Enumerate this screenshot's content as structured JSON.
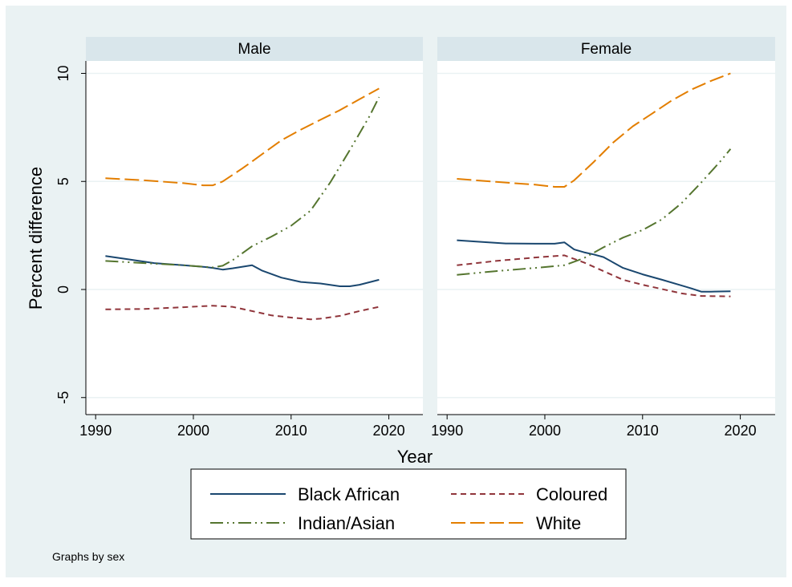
{
  "chart_data": {
    "type": "line",
    "xlabel": "Year",
    "ylabel": "Percent difference",
    "xlim": [
      1989,
      2023
    ],
    "ylim": [
      -5.8,
      10.5
    ],
    "xticks": [
      1990,
      2000,
      2010,
      2020
    ],
    "yticks": [
      -5,
      0,
      5,
      10
    ],
    "grid": true,
    "legend_position": "bottom",
    "note": "Graphs by sex",
    "colors": {
      "background": "#eaf2f3",
      "plot": "#ffffff",
      "strip": "#d9e6eb",
      "grid": "#eaf2f3",
      "black_african": "#1a476f",
      "coloured": "#90353b",
      "indian_asian": "#55752f",
      "white": "#e37e00"
    },
    "panels": [
      {
        "title": "Male",
        "series": [
          {
            "key": "black_african",
            "name": "Black African",
            "x": [
              1991,
              1993,
              1996,
              1999,
              2001,
              2002,
              2003,
              2004,
              2006,
              2007,
              2009,
              2011,
              2013,
              2015,
              2016,
              2017,
              2019
            ],
            "y": [
              1.55,
              1.42,
              1.22,
              1.12,
              1.05,
              1.0,
              0.92,
              0.98,
              1.12,
              0.88,
              0.55,
              0.35,
              0.28,
              0.15,
              0.15,
              0.22,
              0.45
            ]
          },
          {
            "key": "coloured",
            "name": "Coloured",
            "x": [
              1991,
              1995,
              1999,
              2002,
              2004,
              2006,
              2008,
              2010,
              2012,
              2013,
              2015,
              2017,
              2019
            ],
            "y": [
              -0.92,
              -0.9,
              -0.82,
              -0.75,
              -0.8,
              -1.0,
              -1.2,
              -1.3,
              -1.38,
              -1.35,
              -1.22,
              -1.0,
              -0.8
            ]
          },
          {
            "key": "indian_asian",
            "name": "Indian/Asian",
            "x": [
              1991,
              1995,
              1999,
              2002,
              2003,
              2004,
              2006,
              2008,
              2010,
              2012,
              2014,
              2016,
              2018,
              2019
            ],
            "y": [
              1.32,
              1.22,
              1.12,
              1.02,
              1.1,
              1.35,
              2.0,
              2.45,
              2.95,
              3.65,
              4.95,
              6.45,
              8.0,
              8.9
            ]
          },
          {
            "key": "white",
            "name": "White",
            "x": [
              1991,
              1995,
              1999,
              2001,
              2002,
              2003,
              2005,
              2007,
              2009,
              2011,
              2013,
              2015,
              2017,
              2019
            ],
            "y": [
              5.15,
              5.05,
              4.92,
              4.82,
              4.82,
              5.0,
              5.6,
              6.25,
              6.9,
              7.4,
              7.85,
              8.3,
              8.8,
              9.3
            ]
          }
        ]
      },
      {
        "title": "Female",
        "series": [
          {
            "key": "black_african",
            "name": "Black African",
            "x": [
              1991,
              1993,
              1996,
              1999,
              2001,
              2002,
              2003,
              2004,
              2005,
              2006,
              2008,
              2010,
              2012,
              2014,
              2015,
              2016,
              2017,
              2019
            ],
            "y": [
              2.28,
              2.22,
              2.13,
              2.12,
              2.12,
              2.18,
              1.85,
              1.72,
              1.62,
              1.5,
              1.0,
              0.7,
              0.45,
              0.18,
              0.05,
              -0.1,
              -0.1,
              -0.08
            ]
          },
          {
            "key": "coloured",
            "name": "Coloured",
            "x": [
              1991,
              1995,
              1999,
              2002,
              2004,
              2006,
              2008,
              2010,
              2012,
              2014,
              2016,
              2019
            ],
            "y": [
              1.12,
              1.32,
              1.48,
              1.58,
              1.25,
              0.85,
              0.45,
              0.22,
              0.02,
              -0.18,
              -0.3,
              -0.32
            ]
          },
          {
            "key": "indian_asian",
            "name": "Indian/Asian",
            "x": [
              1991,
              1995,
              1999,
              2002,
              2004,
              2006,
              2008,
              2010,
              2012,
              2014,
              2016,
              2018,
              2019
            ],
            "y": [
              0.68,
              0.85,
              1.0,
              1.12,
              1.45,
              1.95,
              2.4,
              2.75,
              3.25,
              4.0,
              4.95,
              5.95,
              6.5
            ]
          },
          {
            "key": "white",
            "name": "White",
            "x": [
              1991,
              1995,
              1999,
              2001,
              2002,
              2003,
              2005,
              2007,
              2009,
              2011,
              2013,
              2015,
              2017,
              2019
            ],
            "y": [
              5.12,
              4.98,
              4.85,
              4.75,
              4.75,
              5.05,
              5.9,
              6.8,
              7.55,
              8.15,
              8.75,
              9.25,
              9.65,
              10.0
            ]
          }
        ]
      }
    ],
    "legend": [
      {
        "key": "black_african",
        "name": "Black African",
        "dash": "solid"
      },
      {
        "key": "coloured",
        "name": "Coloured",
        "dash": "short-dash"
      },
      {
        "key": "indian_asian",
        "name": "Indian/Asian",
        "dash": "dash-dot-dot"
      },
      {
        "key": "white",
        "name": "White",
        "dash": "long-dash"
      }
    ]
  }
}
